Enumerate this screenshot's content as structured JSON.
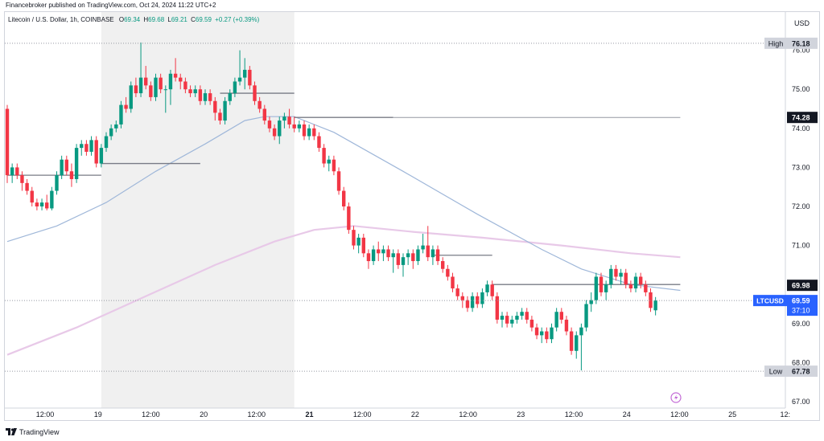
{
  "header": {
    "published_by": "Financebroker published on TradingView.com, Oct 24, 2024 11:22 UTC+2"
  },
  "legend": {
    "symbol": "Litecoin / U.S. Dollar, 1h, COINBASE",
    "open_label": "O",
    "open": "69.34",
    "high_label": "H",
    "high": "69.68",
    "low_label": "L",
    "low": "69.21",
    "close_label": "C",
    "close": "69.59",
    "change": "+0.27 (+0.39%)"
  },
  "footer": {
    "brand": "TradingView"
  },
  "colors": {
    "up": "#089981",
    "down": "#f23645",
    "ma_fast": "#9fb7d9",
    "ma_slow": "#e8c9e8",
    "level_line": "#787b86",
    "highlight_bg": "#f0f0f0",
    "tag_dark": "#131722",
    "tag_light": "#d1d4dc",
    "tag_blue": "#2962ff"
  },
  "chart_data": {
    "type": "candlestick",
    "currency": "USD",
    "ylim": [
      67.0,
      76.6
    ],
    "y_ticks": [
      "76.00",
      "75.00",
      "74.00",
      "73.00",
      "72.00",
      "71.00",
      "70.00",
      "69.00",
      "68.00",
      "67.00"
    ],
    "x_ticks": [
      "12:00",
      "19",
      "12:00",
      "20",
      "12:00",
      "21",
      "12:00",
      "22",
      "12:00",
      "23",
      "12:00",
      "24",
      "12:00",
      "25",
      "12:"
    ],
    "x_range_hours": [
      0,
      146
    ],
    "highlight_hours": [
      19,
      58
    ],
    "candles": [
      [
        74.5,
        74.6,
        72.6,
        72.8
      ],
      [
        72.8,
        73.1,
        72.6,
        73.0
      ],
      [
        73.0,
        73.1,
        72.7,
        72.8
      ],
      [
        72.8,
        72.9,
        72.4,
        72.6
      ],
      [
        72.6,
        72.7,
        72.3,
        72.4
      ],
      [
        72.4,
        72.5,
        72.0,
        72.1
      ],
      [
        72.1,
        72.2,
        71.9,
        72.0
      ],
      [
        72.0,
        72.2,
        71.9,
        72.1
      ],
      [
        72.1,
        72.3,
        71.9,
        71.95
      ],
      [
        71.95,
        72.5,
        71.9,
        72.4
      ],
      [
        72.4,
        72.9,
        72.3,
        72.8
      ],
      [
        72.8,
        73.3,
        72.7,
        73.2
      ],
      [
        73.2,
        73.3,
        72.8,
        72.9
      ],
      [
        72.9,
        73.1,
        72.5,
        72.7
      ],
      [
        72.7,
        73.6,
        72.6,
        73.5
      ],
      [
        73.5,
        73.7,
        73.3,
        73.6
      ],
      [
        73.6,
        73.7,
        73.3,
        73.4
      ],
      [
        73.4,
        73.8,
        73.3,
        73.7
      ],
      [
        73.7,
        73.8,
        73.0,
        73.1
      ],
      [
        73.1,
        73.6,
        73.0,
        73.5
      ],
      [
        73.5,
        73.9,
        73.4,
        73.8
      ],
      [
        73.8,
        74.1,
        73.7,
        74.0
      ],
      [
        74.0,
        74.2,
        73.9,
        74.1
      ],
      [
        74.1,
        74.7,
        74.0,
        74.6
      ],
      [
        74.6,
        74.8,
        74.4,
        74.5
      ],
      [
        74.5,
        75.2,
        74.4,
        75.1
      ],
      [
        75.1,
        75.3,
        74.8,
        74.9
      ],
      [
        74.9,
        76.2,
        74.8,
        75.3
      ],
      [
        75.3,
        75.6,
        75.0,
        75.1
      ],
      [
        75.1,
        75.2,
        74.7,
        74.8
      ],
      [
        74.8,
        75.4,
        74.7,
        75.3
      ],
      [
        75.3,
        75.4,
        74.9,
        75.0
      ],
      [
        75.0,
        75.1,
        74.4,
        75.0
      ],
      [
        75.0,
        75.5,
        74.6,
        75.4
      ],
      [
        75.4,
        75.8,
        75.2,
        75.3
      ],
      [
        75.3,
        75.4,
        75.0,
        75.2
      ],
      [
        75.2,
        75.3,
        74.9,
        75.0
      ],
      [
        75.0,
        75.1,
        74.8,
        74.9
      ],
      [
        74.9,
        75.1,
        74.8,
        75.0
      ],
      [
        75.0,
        75.1,
        74.6,
        74.7
      ],
      [
        74.7,
        75.0,
        74.6,
        74.9
      ],
      [
        74.9,
        75.0,
        74.6,
        74.7
      ],
      [
        74.7,
        74.8,
        74.2,
        74.4
      ],
      [
        74.4,
        74.5,
        74.1,
        74.2
      ],
      [
        74.2,
        74.8,
        74.1,
        74.7
      ],
      [
        74.7,
        75.0,
        74.6,
        74.9
      ],
      [
        74.9,
        75.3,
        74.8,
        75.2
      ],
      [
        75.2,
        76.0,
        75.1,
        75.3
      ],
      [
        75.3,
        75.8,
        75.0,
        75.5
      ],
      [
        75.5,
        75.6,
        75.0,
        75.1
      ],
      [
        75.1,
        75.2,
        74.6,
        74.7
      ],
      [
        74.7,
        74.8,
        74.4,
        74.5
      ],
      [
        74.5,
        74.6,
        74.1,
        74.2
      ],
      [
        74.2,
        74.3,
        73.9,
        74.0
      ],
      [
        74.0,
        74.1,
        73.7,
        73.8
      ],
      [
        73.8,
        74.3,
        73.6,
        74.2
      ],
      [
        74.2,
        74.4,
        74.0,
        74.3
      ],
      [
        74.3,
        74.5,
        74.0,
        74.1
      ],
      [
        74.1,
        74.3,
        73.9,
        74.0
      ],
      [
        74.0,
        74.2,
        73.9,
        74.1
      ],
      [
        74.1,
        74.2,
        73.7,
        73.8
      ],
      [
        73.8,
        74.1,
        73.7,
        74.0
      ],
      [
        74.0,
        74.1,
        73.7,
        73.8
      ],
      [
        73.8,
        73.9,
        73.4,
        73.5
      ],
      [
        73.5,
        73.6,
        73.0,
        73.1
      ],
      [
        73.1,
        73.3,
        72.9,
        73.2
      ],
      [
        73.2,
        73.3,
        72.8,
        72.9
      ],
      [
        72.9,
        73.0,
        72.3,
        72.4
      ],
      [
        72.4,
        72.5,
        71.9,
        72.0
      ],
      [
        72.0,
        72.1,
        71.3,
        71.4
      ],
      [
        71.4,
        71.5,
        70.9,
        71.0
      ],
      [
        71.0,
        71.3,
        70.8,
        71.2
      ],
      [
        71.2,
        71.3,
        70.7,
        70.8
      ],
      [
        70.8,
        70.9,
        70.4,
        70.6
      ],
      [
        70.6,
        71.0,
        70.5,
        70.9
      ],
      [
        70.9,
        71.1,
        70.6,
        70.8
      ],
      [
        70.8,
        71.0,
        70.6,
        70.9
      ],
      [
        70.9,
        71.0,
        70.6,
        70.7
      ],
      [
        70.7,
        70.9,
        70.3,
        70.8
      ],
      [
        70.8,
        70.9,
        70.4,
        70.5
      ],
      [
        70.5,
        70.8,
        70.2,
        70.7
      ],
      [
        70.7,
        70.9,
        70.5,
        70.8
      ],
      [
        70.8,
        70.9,
        70.4,
        70.6
      ],
      [
        70.6,
        71.0,
        70.5,
        70.9
      ],
      [
        70.9,
        71.3,
        70.8,
        71.0
      ],
      [
        71.0,
        71.5,
        70.6,
        70.7
      ],
      [
        70.7,
        71.0,
        70.5,
        70.9
      ],
      [
        70.9,
        71.0,
        70.5,
        70.6
      ],
      [
        70.6,
        70.7,
        70.3,
        70.4
      ],
      [
        70.4,
        70.5,
        70.1,
        70.2
      ],
      [
        70.2,
        70.3,
        69.8,
        69.9
      ],
      [
        69.9,
        70.0,
        69.6,
        69.7
      ],
      [
        69.7,
        69.8,
        69.4,
        69.6
      ],
      [
        69.6,
        69.7,
        69.3,
        69.4
      ],
      [
        69.4,
        69.8,
        69.3,
        69.7
      ],
      [
        69.7,
        69.8,
        69.4,
        69.5
      ],
      [
        69.5,
        69.9,
        69.4,
        69.8
      ],
      [
        69.8,
        70.1,
        69.7,
        70.0
      ],
      [
        70.0,
        70.1,
        69.6,
        69.7
      ],
      [
        69.7,
        69.8,
        69.0,
        69.1
      ],
      [
        69.1,
        69.3,
        68.9,
        69.2
      ],
      [
        69.2,
        69.3,
        68.9,
        69.0
      ],
      [
        69.0,
        69.2,
        68.9,
        69.1
      ],
      [
        69.1,
        69.3,
        69.0,
        69.2
      ],
      [
        69.2,
        69.4,
        69.1,
        69.3
      ],
      [
        69.3,
        69.4,
        69.0,
        69.1
      ],
      [
        69.1,
        69.2,
        68.8,
        68.9
      ],
      [
        68.9,
        69.0,
        68.6,
        68.7
      ],
      [
        68.7,
        68.9,
        68.5,
        68.8
      ],
      [
        68.8,
        68.9,
        68.5,
        68.6
      ],
      [
        68.6,
        69.0,
        68.5,
        68.9
      ],
      [
        68.9,
        69.4,
        68.8,
        69.3
      ],
      [
        69.3,
        69.4,
        69.0,
        69.1
      ],
      [
        69.1,
        69.2,
        68.7,
        68.8
      ],
      [
        68.8,
        68.9,
        68.2,
        68.3
      ],
      [
        68.3,
        68.8,
        68.1,
        68.7
      ],
      [
        68.7,
        69.0,
        67.8,
        68.9
      ],
      [
        68.9,
        69.6,
        68.8,
        69.5
      ],
      [
        69.5,
        69.8,
        69.3,
        69.6
      ],
      [
        69.6,
        70.3,
        69.5,
        70.2
      ],
      [
        70.2,
        70.3,
        69.7,
        69.8
      ],
      [
        69.8,
        70.1,
        69.6,
        70.0
      ],
      [
        70.0,
        70.5,
        69.9,
        70.4
      ],
      [
        70.4,
        70.5,
        70.1,
        70.2
      ],
      [
        70.2,
        70.4,
        70.0,
        70.3
      ],
      [
        70.3,
        70.4,
        69.9,
        70.0
      ],
      [
        70.0,
        70.1,
        69.8,
        69.9
      ],
      [
        69.9,
        70.3,
        69.8,
        70.2
      ],
      [
        70.2,
        70.3,
        69.9,
        70.0
      ],
      [
        70.0,
        70.1,
        69.7,
        69.8
      ],
      [
        69.8,
        69.9,
        69.3,
        69.4
      ],
      [
        69.34,
        69.68,
        69.21,
        69.59
      ]
    ],
    "ma_fast": [
      [
        0,
        71.1
      ],
      [
        10,
        71.5
      ],
      [
        20,
        72.1
      ],
      [
        30,
        72.9
      ],
      [
        40,
        73.6
      ],
      [
        48,
        74.2
      ],
      [
        52,
        74.3
      ],
      [
        58,
        74.3
      ],
      [
        66,
        73.9
      ],
      [
        80,
        72.9
      ],
      [
        95,
        71.8
      ],
      [
        108,
        70.9
      ],
      [
        116,
        70.4
      ],
      [
        126,
        70.0
      ],
      [
        136,
        69.85
      ]
    ],
    "ma_slow": [
      [
        0,
        68.2
      ],
      [
        14,
        68.9
      ],
      [
        28,
        69.7
      ],
      [
        42,
        70.5
      ],
      [
        54,
        71.1
      ],
      [
        62,
        71.4
      ],
      [
        70,
        71.5
      ],
      [
        82,
        71.35
      ],
      [
        96,
        71.2
      ],
      [
        112,
        71.0
      ],
      [
        126,
        70.8
      ],
      [
        136,
        70.7
      ]
    ],
    "levels": [
      {
        "value": 72.8,
        "x_from": 0,
        "x_to": 19
      },
      {
        "value": 73.1,
        "x_from": 19,
        "x_to": 39
      },
      {
        "value": 74.9,
        "x_from": 43,
        "x_to": 58
      },
      {
        "value": 74.28,
        "x_from": 58,
        "x_to": 78
      },
      {
        "value": 74.28,
        "x_from": 78,
        "x_to": 136,
        "style": "faint"
      },
      {
        "value": 70.75,
        "x_from": 86,
        "x_to": 98
      },
      {
        "value": 70.0,
        "x_from": 98,
        "x_to": 136
      }
    ],
    "high": {
      "label": "High",
      "value": "76.18"
    },
    "low": {
      "label": "Low",
      "value": "67.78"
    },
    "price_tags": [
      {
        "value": "74.28",
        "style": "dark"
      },
      {
        "value": "69.98",
        "style": "dark"
      },
      {
        "value": "69.59",
        "style": "blue",
        "symbol": "LTCUSD",
        "countdown": "37:10"
      }
    ]
  }
}
